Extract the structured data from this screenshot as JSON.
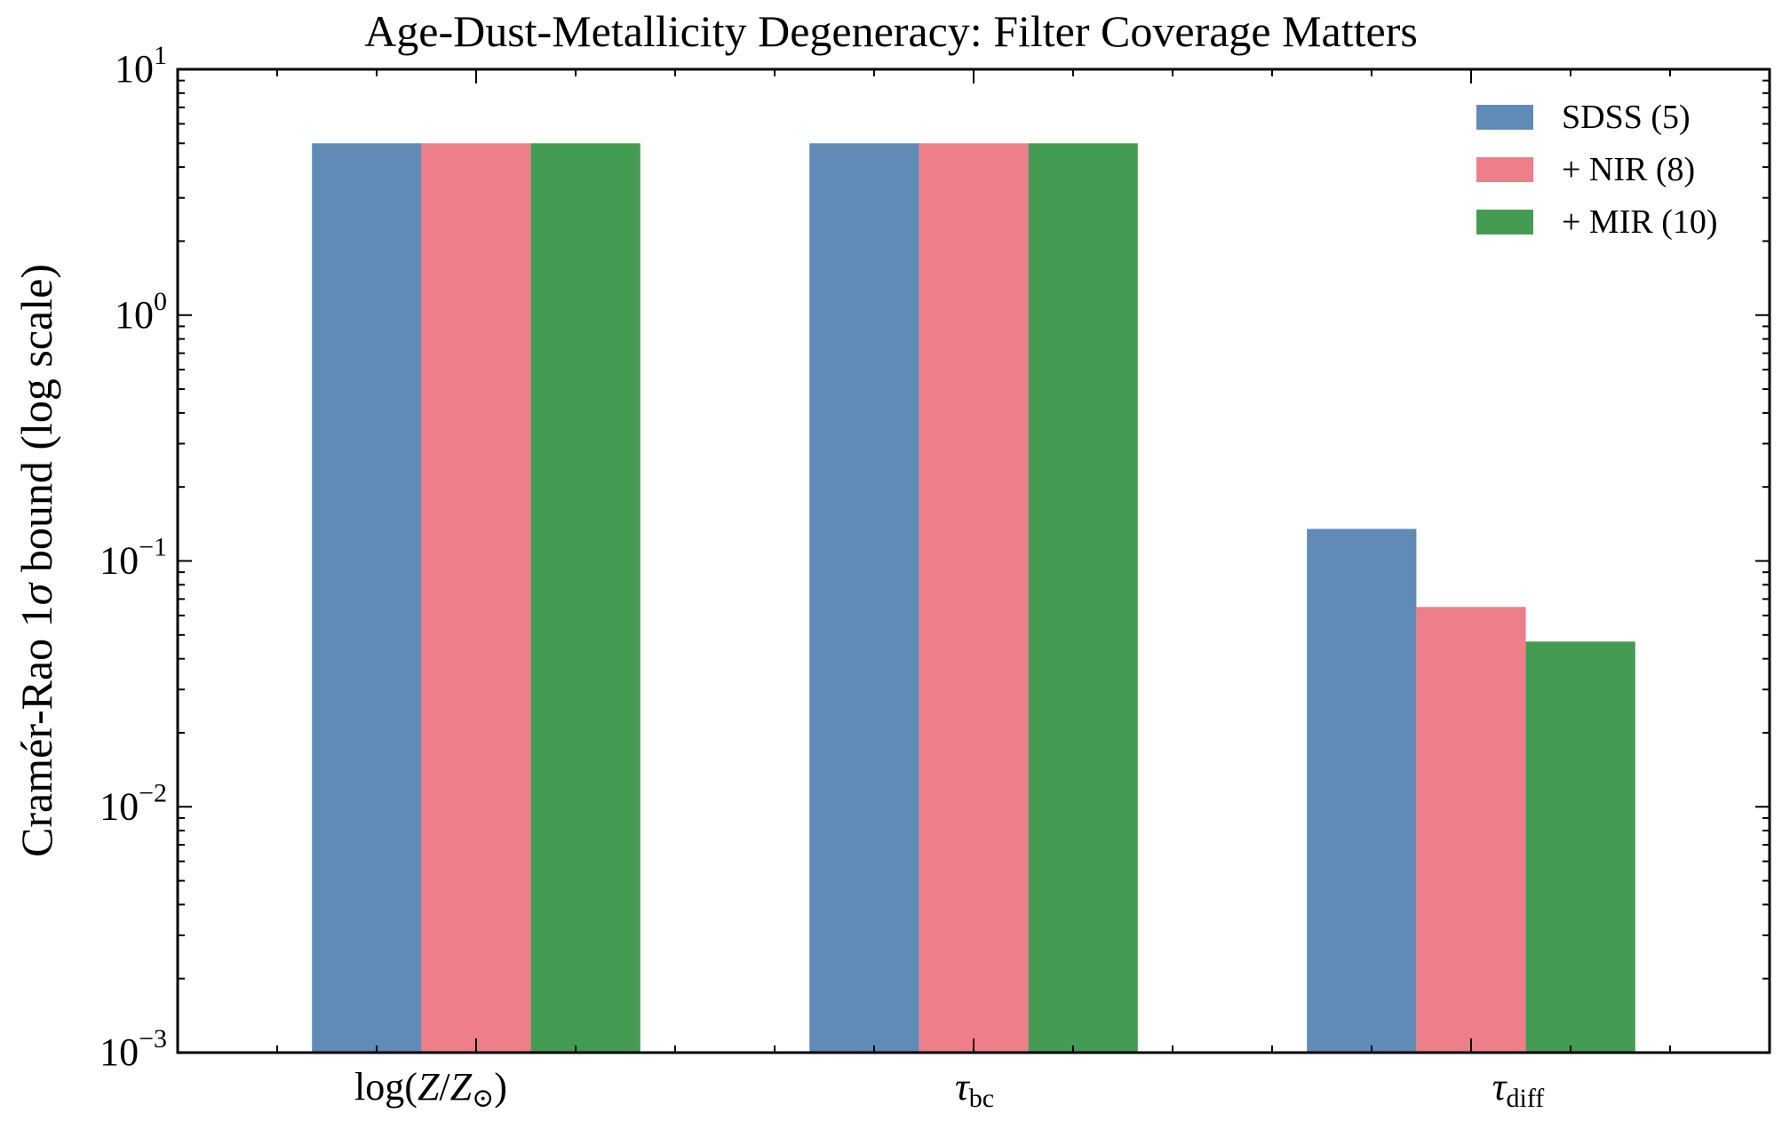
{
  "chart_data": {
    "type": "bar",
    "title": "Age-Dust-Metallicity Degeneracy: Filter Coverage Matters",
    "ylabel": "Cramér-Rao 1σ bound (log scale)",
    "xlabel": "",
    "yscale": "log",
    "ylim": [
      0.001,
      10
    ],
    "yticks": [
      {
        "value": 0.001,
        "base": "10",
        "exp": "−3"
      },
      {
        "value": 0.01,
        "base": "10",
        "exp": "−2"
      },
      {
        "value": 0.1,
        "base": "10",
        "exp": "−1"
      },
      {
        "value": 1,
        "base": "10",
        "exp": "0"
      },
      {
        "value": 10,
        "base": "10",
        "exp": "1"
      }
    ],
    "categories": [
      "log(Z/Z⊙)",
      "τbc",
      "τdiff"
    ],
    "series": [
      {
        "name": "SDSS (5)",
        "color": "#5f8bb6",
        "values": [
          5.0,
          5.0,
          0.135
        ]
      },
      {
        "name": "+ NIR (8)",
        "color": "#ef7e8b",
        "values": [
          5.0,
          5.0,
          0.065
        ]
      },
      {
        "name": "+ MIR (10)",
        "color": "#449c53",
        "values": [
          5.0,
          5.0,
          0.047
        ]
      }
    ],
    "legend_position": "top-right",
    "grid": false
  }
}
